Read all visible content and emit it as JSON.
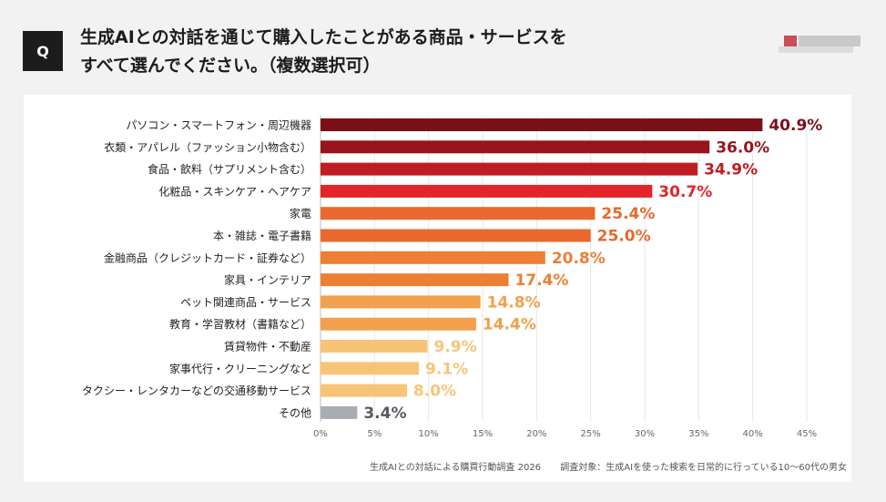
{
  "header": {
    "badge": "Q",
    "question_line1": "生成AIとの対話を通じて購入したことがある商品・サービスを",
    "question_line2": "すべて選んでください。（複数選択可）"
  },
  "footer": {
    "source": "生成AIとの対話による購買行動調査 2026",
    "target": "調査対象：生成AIを使った検索を日常的に行っている10〜60代の男女"
  },
  "chart_data": {
    "type": "bar",
    "orientation": "horizontal",
    "categories": [
      "パソコン・スマートフォン・周辺機器",
      "衣類・アパレル（ファッション小物含む）",
      "食品・飲料（サプリメント含む）",
      "化粧品・スキンケア・ヘアケア",
      "家電",
      "本・雑誌・電子書籍",
      "金融商品（クレジットカード・証券など）",
      "家具・インテリア",
      "ペット関連商品・サービス",
      "教育・学習教材（書籍など）",
      "賃貸物件・不動産",
      "家事代行・クリーニングなど",
      "タクシー・レンタカーなどの交通移動サービス",
      "その他"
    ],
    "values": [
      40.9,
      36.0,
      34.9,
      30.7,
      25.4,
      25.0,
      20.8,
      17.4,
      14.8,
      14.4,
      9.9,
      9.1,
      8.0,
      3.4
    ],
    "value_labels": [
      "40.9%",
      "36.0%",
      "34.9%",
      "30.7%",
      "25.4%",
      "25.0%",
      "20.8%",
      "17.4%",
      "14.8%",
      "14.4%",
      "9.9%",
      "9.1%",
      "8.0%",
      "3.4%"
    ],
    "colors": [
      "#7b1019",
      "#99141d",
      "#c01d22",
      "#e0262a",
      "#e8682e",
      "#e8682e",
      "#ed7f34",
      "#ed7f34",
      "#f2a04d",
      "#f2a04d",
      "#f7c477",
      "#f7c477",
      "#f7c477",
      "#a8adb3"
    ],
    "label_colors": [
      "#7b1019",
      "#99141d",
      "#c01d22",
      "#e0262a",
      "#e8682e",
      "#e8682e",
      "#ed7f34",
      "#ed7f34",
      "#f2a04d",
      "#f2a04d",
      "#f7c477",
      "#f7c477",
      "#f7c477",
      "#555a60"
    ],
    "xlim": [
      0,
      45
    ],
    "xticks": [
      0,
      5,
      10,
      15,
      20,
      25,
      30,
      35,
      40,
      45
    ],
    "xtick_labels": [
      "0%",
      "5%",
      "10%",
      "15%",
      "20%",
      "25%",
      "30%",
      "35%",
      "40%",
      "45%"
    ],
    "grid": true,
    "legend": "none"
  }
}
